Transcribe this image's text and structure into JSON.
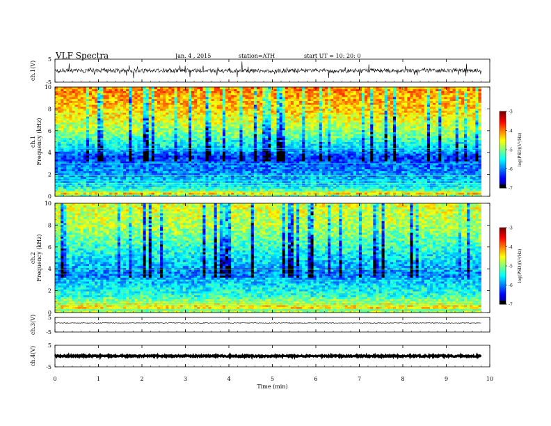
{
  "header": {
    "title": "VLF Spectra",
    "date": "Jan. 4 , 2015",
    "station": "station=ATH",
    "start": "start UT = 10: 20: 0"
  },
  "chart_data": [
    {
      "type": "line",
      "name": "ch.1(V)",
      "ylabel": "ch.1(V)",
      "ylim": [
        -5,
        5
      ],
      "yticks": [
        "5",
        "-5"
      ],
      "xlim": [
        0,
        10
      ],
      "data_end_min": 9.8,
      "baseline": 0,
      "noise_amplitude": 0.9,
      "spike_amplitude": 3.5,
      "color": "#000000"
    },
    {
      "type": "heatmap",
      "name": "ch.1 spectrogram",
      "ylabel": "ch.1\nFrequency (kHz)",
      "ylabel_lines": [
        "ch.1",
        "Frequency (kHz)"
      ],
      "ylim": [
        0,
        10
      ],
      "yticks": [
        "0",
        "2",
        "4",
        "6",
        "8",
        "10"
      ],
      "xlim": [
        0,
        10
      ],
      "data_end_min": 9.8,
      "colorbar": {
        "label": "log(PSD)(V²/Hz)",
        "range": [
          -7,
          -3
        ],
        "ticks": [
          "-3",
          "-4",
          "-5",
          "-6",
          "-7"
        ]
      },
      "psd_profile_khz": [
        [
          0,
          -5.4
        ],
        [
          0.3,
          -4.2
        ],
        [
          0.6,
          -5.2
        ],
        [
          1.0,
          -5.6
        ],
        [
          2.0,
          -5.9
        ],
        [
          3.0,
          -6.1
        ],
        [
          3.6,
          -6.3
        ],
        [
          4.5,
          -5.6
        ],
        [
          6.0,
          -4.9
        ],
        [
          8.0,
          -4.3
        ],
        [
          10.0,
          -4.0
        ]
      ]
    },
    {
      "type": "heatmap",
      "name": "ch.2 spectrogram",
      "ylabel": "ch.2\nFrequency (kHz)",
      "ylabel_lines": [
        "ch.2",
        "Frequency (kHz)"
      ],
      "ylim": [
        0,
        10
      ],
      "yticks": [
        "0",
        "2",
        "4",
        "6",
        "8",
        "10"
      ],
      "xlim": [
        0,
        10
      ],
      "data_end_min": 9.8,
      "colorbar": {
        "label": "log(PSD)(V²/Hz)",
        "range": [
          -7,
          -3
        ],
        "ticks": [
          "-3",
          "-4",
          "-5",
          "-6",
          "-7"
        ]
      },
      "psd_profile_khz": [
        [
          0,
          -5.0
        ],
        [
          0.5,
          -4.4
        ],
        [
          1.0,
          -4.8
        ],
        [
          1.5,
          -5.3
        ],
        [
          2.5,
          -5.6
        ],
        [
          3.5,
          -6.0
        ],
        [
          4.5,
          -5.7
        ],
        [
          6.0,
          -5.3
        ],
        [
          8.0,
          -4.8
        ],
        [
          10.0,
          -4.6
        ]
      ]
    },
    {
      "type": "line",
      "name": "ch.3(V)",
      "ylabel": "ch.3(V)",
      "ylim": [
        -5,
        5
      ],
      "yticks": [
        "5",
        "-5"
      ],
      "xlim": [
        0,
        10
      ],
      "data_end_min": 9.8,
      "baseline": 1.2,
      "noise_amplitude": 0.25,
      "spike_amplitude": 0,
      "color": "#000000"
    },
    {
      "type": "line",
      "name": "ch.4(V)",
      "ylabel": "ch.4(V)",
      "ylim": [
        -5,
        5
      ],
      "yticks": [
        "5",
        "-5"
      ],
      "xlim": [
        0,
        10
      ],
      "data_end_min": 9.8,
      "baseline": 0,
      "noise_amplitude": 0.35,
      "spike_amplitude": 0,
      "color": "#000000"
    }
  ],
  "xaxis": {
    "label": "Time (min)",
    "ticks": [
      "0",
      "1",
      "2",
      "3",
      "4",
      "5",
      "6",
      "7",
      "8",
      "9",
      "10"
    ],
    "range": [
      0,
      10
    ]
  }
}
